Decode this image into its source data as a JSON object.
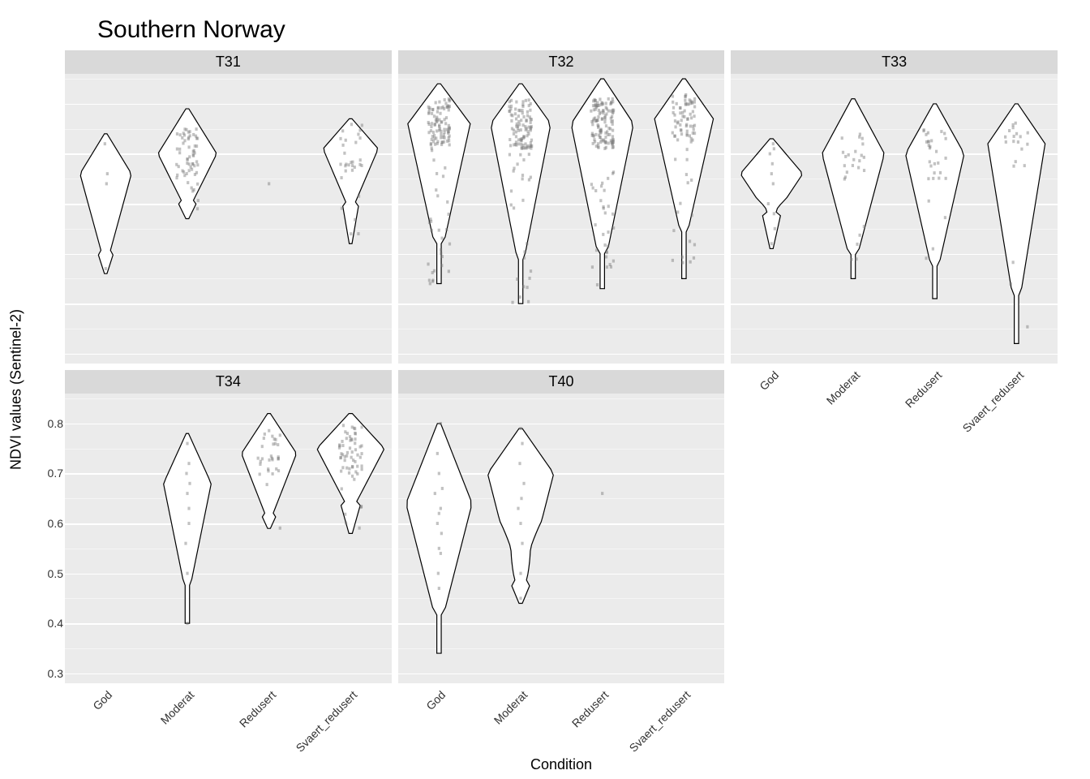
{
  "title": "Southern Norway",
  "y_axis_label": "NDVI values (Sentinel-2)",
  "x_axis_label": "Condition",
  "y_limits": [
    0.28,
    0.86
  ],
  "y_ticks": [
    0.3,
    0.4,
    0.5,
    0.6,
    0.7,
    0.8
  ],
  "y_minor_ticks": [
    0.35,
    0.45,
    0.55,
    0.65,
    0.75,
    0.85
  ],
  "categories": [
    "God",
    "Moderat",
    "Redusert",
    "Svaert_redusert"
  ],
  "colors": {
    "panel_bg": "#ebebeb",
    "strip_bg": "#d9d9d9",
    "grid_major": "#ffffff",
    "grid_minor": "#f5f5f5",
    "violin_fill": "#ffffff",
    "violin_stroke": "#000000",
    "point_color": "rgba(120,120,120,0.45)",
    "text_color": "#000000"
  },
  "panels": [
    {
      "name": "T31",
      "row": 0,
      "col": 0,
      "show_y_ticks": true
    },
    {
      "name": "T32",
      "row": 0,
      "col": 1,
      "show_y_ticks": false
    },
    {
      "name": "T33",
      "row": 0,
      "col": 2,
      "show_y_ticks": false,
      "show_x_ticks_row0": true
    },
    {
      "name": "T34",
      "row": 1,
      "col": 0,
      "show_y_ticks": true,
      "show_x_ticks": true
    },
    {
      "name": "T40",
      "row": 1,
      "col": 1,
      "show_y_ticks": false,
      "show_x_ticks": true
    }
  ],
  "violin_data": {
    "T31": {
      "God": {
        "min": 0.46,
        "max": 0.74,
        "bulge": 0.66,
        "width": 0.7,
        "neck": 0.5,
        "points": [
          [
            0.02,
            0.66
          ],
          [
            -0.01,
            0.72
          ],
          [
            0.01,
            0.64
          ],
          [
            0.0,
            0.47
          ]
        ]
      },
      "Moderat": {
        "min": 0.57,
        "max": 0.79,
        "bulge": 0.7,
        "width": 0.8,
        "neck": 0.6,
        "points_dense": true,
        "n": 60
      },
      "Redusert": {
        "points": [
          [
            0.0,
            0.64
          ]
        ],
        "single": true
      },
      "Svaert_redusert": {
        "min": 0.52,
        "max": 0.77,
        "bulge": 0.71,
        "width": 0.75,
        "neck": 0.6,
        "points_dense": true,
        "n": 30
      }
    },
    "T32": {
      "God": {
        "min": 0.44,
        "max": 0.84,
        "bulge": 0.76,
        "width": 0.85,
        "neck": 0.52,
        "points_dense": true,
        "n": 120,
        "tail": true
      },
      "Moderat": {
        "min": 0.4,
        "max": 0.84,
        "bulge": 0.76,
        "width": 0.82,
        "neck": 0.5,
        "points_dense": true,
        "n": 120,
        "tail": true
      },
      "Redusert": {
        "min": 0.43,
        "max": 0.85,
        "bulge": 0.76,
        "width": 0.85,
        "neck": 0.5,
        "points_dense": true,
        "n": 150,
        "tail": true
      },
      "Svaert_redusert": {
        "min": 0.45,
        "max": 0.85,
        "bulge": 0.77,
        "width": 0.8,
        "neck": 0.55,
        "points_dense": true,
        "n": 80,
        "tail": true
      }
    },
    "T33": {
      "God": {
        "min": 0.51,
        "max": 0.73,
        "bulge": 0.66,
        "width": 0.85,
        "neck": 0.58,
        "points": [
          [
            0.02,
            0.72
          ],
          [
            0.03,
            0.71
          ],
          [
            0.0,
            0.66
          ],
          [
            -0.04,
            0.6
          ],
          [
            0.04,
            0.55
          ],
          [
            0.0,
            0.52
          ],
          [
            0.02,
            0.64
          ],
          [
            0.01,
            0.68
          ],
          [
            -0.02,
            0.7
          ],
          [
            0.03,
            0.58
          ]
        ],
        "waist": 0.59
      },
      "Moderat": {
        "min": 0.45,
        "max": 0.81,
        "bulge": 0.7,
        "width": 0.85,
        "neck": 0.5,
        "points_dense": true,
        "n": 25,
        "tail": true
      },
      "Redusert": {
        "min": 0.41,
        "max": 0.8,
        "bulge": 0.7,
        "width": 0.8,
        "neck": 0.48,
        "points_dense": true,
        "n": 30,
        "tail": true
      },
      "Svaert_redusert": {
        "min": 0.32,
        "max": 0.8,
        "bulge": 0.72,
        "width": 0.78,
        "neck": 0.42,
        "points_dense": true,
        "n": 20,
        "tail": true
      }
    },
    "T34": {
      "God": {
        "empty": true
      },
      "Moderat": {
        "min": 0.4,
        "max": 0.78,
        "bulge": 0.68,
        "width": 0.65,
        "neck": 0.48,
        "points": [
          [
            0.0,
            0.76
          ],
          [
            0.02,
            0.72
          ],
          [
            -0.01,
            0.7
          ],
          [
            0.03,
            0.68
          ],
          [
            0.0,
            0.66
          ],
          [
            0.02,
            0.63
          ],
          [
            0.02,
            0.6
          ],
          [
            -0.02,
            0.56
          ],
          [
            0.0,
            0.5
          ],
          [
            0.0,
            0.4
          ]
        ],
        "tail": true
      },
      "Redusert": {
        "min": 0.59,
        "max": 0.82,
        "bulge": 0.74,
        "width": 0.75,
        "neck": 0.62,
        "points_dense": true,
        "n": 30
      },
      "Svaert_redusert": {
        "min": 0.58,
        "max": 0.82,
        "bulge": 0.75,
        "width": 0.92,
        "neck": 0.64,
        "points_dense": true,
        "n": 60
      }
    },
    "T40": {
      "God": {
        "min": 0.34,
        "max": 0.8,
        "bulge": 0.64,
        "width": 0.9,
        "neck": 0.42,
        "points": [
          [
            0.02,
            0.8
          ],
          [
            -0.02,
            0.74
          ],
          [
            0.0,
            0.7
          ],
          [
            0.04,
            0.67
          ],
          [
            -0.05,
            0.66
          ],
          [
            0.02,
            0.63
          ],
          [
            0.0,
            0.62
          ],
          [
            -0.02,
            0.6
          ],
          [
            0.03,
            0.58
          ],
          [
            0.0,
            0.55
          ],
          [
            0.02,
            0.54
          ],
          [
            -0.01,
            0.5
          ],
          [
            0.0,
            0.47
          ]
        ],
        "tail": true
      },
      "Moderat": {
        "min": 0.44,
        "max": 0.79,
        "bulge": 0.7,
        "width": 0.9,
        "neck": 0.48,
        "points": [
          [
            0.0,
            0.79
          ],
          [
            0.02,
            0.76
          ],
          [
            -0.01,
            0.72
          ],
          [
            0.04,
            0.68
          ],
          [
            0.01,
            0.65
          ],
          [
            -0.03,
            0.63
          ],
          [
            0.0,
            0.6
          ],
          [
            0.02,
            0.56
          ],
          [
            0.0,
            0.5
          ],
          [
            0.0,
            0.45
          ]
        ],
        "waist": 0.55
      },
      "Redusert": {
        "points": [
          [
            0.0,
            0.66
          ]
        ],
        "single": true
      },
      "Svaert_redusert": {
        "empty": true
      }
    }
  }
}
